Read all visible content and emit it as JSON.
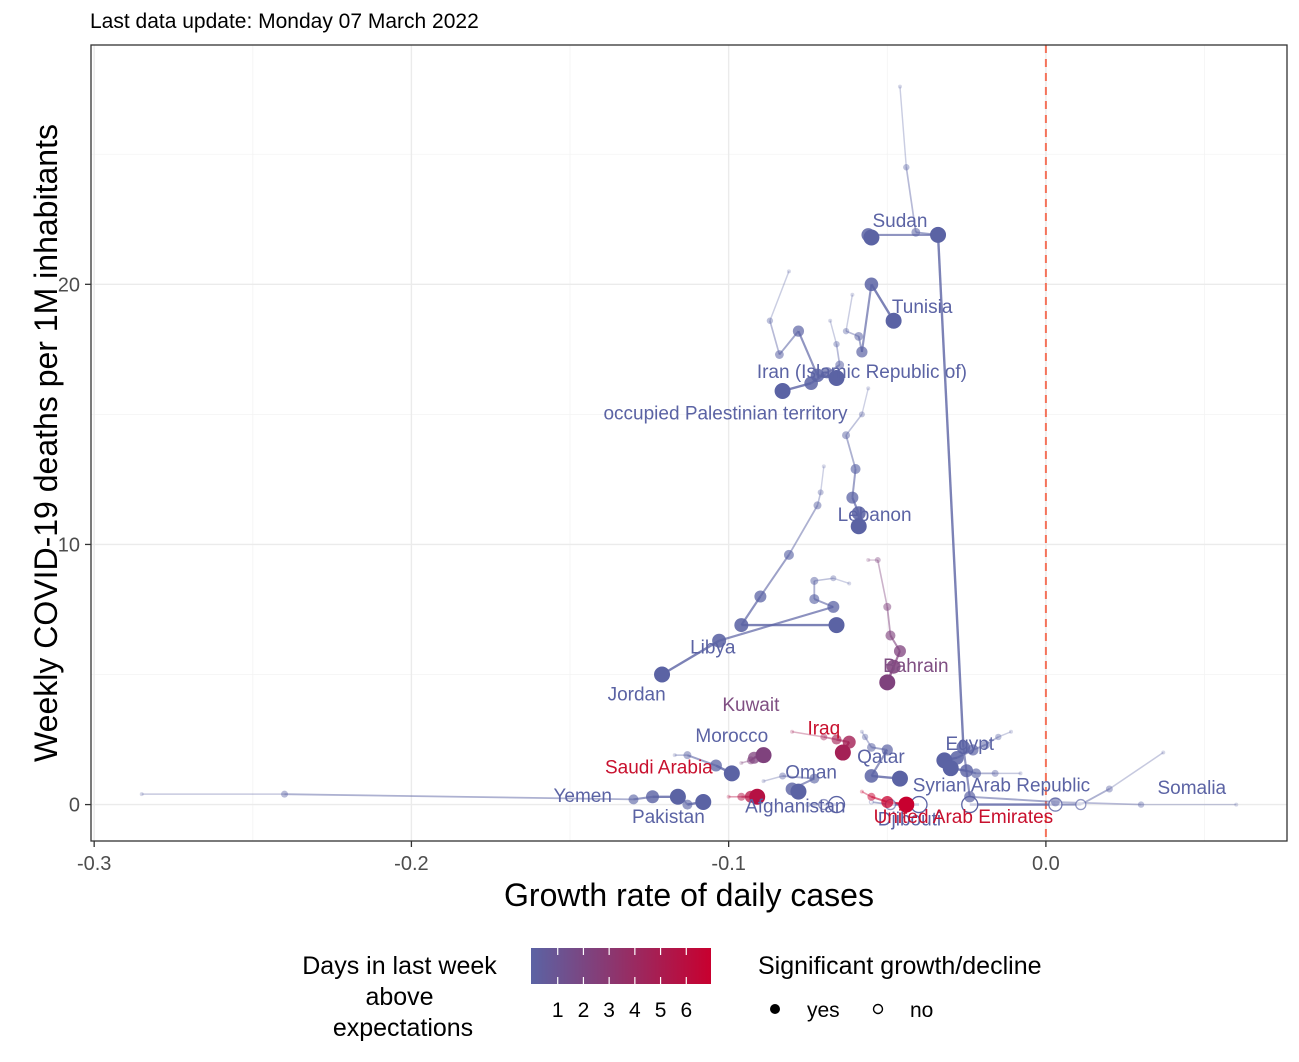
{
  "subtitle": "Last data update: Monday 07 March 2022",
  "legend": {
    "color_title": [
      "Days in last week",
      "above",
      "expectations"
    ],
    "color_ticks": [
      "1",
      "2",
      "3",
      "4",
      "5",
      "6"
    ],
    "color_low": "#5b63a4",
    "color_high": "#c8002f",
    "shape_title": "Significant growth/decline",
    "shape_yes": "yes",
    "shape_no": "no"
  },
  "colors": {
    "reference_line": "#f4735a",
    "text_blue": "#5b63a4",
    "text_purple": "#7f4e82",
    "text_red": "#c8102e"
  },
  "chart_data": {
    "type": "scatter",
    "xlabel": "Growth rate of daily cases",
    "ylabel": "Weekly COVID-19 deaths per 1M inhabitants",
    "xlim": [
      -0.301,
      0.076
    ],
    "ylim": [
      -1.4,
      29.2
    ],
    "x_ticks": [
      -0.3,
      -0.2,
      -0.1,
      0.0
    ],
    "x_tick_labels": [
      "-0.3",
      "-0.2",
      "-0.1",
      "0.0"
    ],
    "y_ticks": [
      0,
      10,
      20
    ],
    "y_tick_labels": [
      "0",
      "10",
      "20"
    ],
    "reference_line_x": 0.0,
    "grid": true,
    "legend_position": "bottom",
    "series": [
      {
        "name": "Sudan",
        "days": 0,
        "label_color": "blue",
        "trail": [
          [
            -0.046,
            27.6
          ],
          [
            -0.044,
            24.5
          ],
          [
            -0.041,
            22.0
          ],
          [
            -0.034,
            21.9
          ],
          [
            -0.056,
            21.9
          ],
          [
            -0.055,
            21.8
          ]
        ],
        "significant": [
          true,
          true,
          true,
          true,
          true,
          true
        ]
      },
      {
        "name": "Tunisia",
        "days": 0,
        "label_color": "blue",
        "trail": [
          [
            -0.061,
            19.6
          ],
          [
            -0.063,
            18.2
          ],
          [
            -0.059,
            18.0
          ],
          [
            -0.058,
            17.4
          ],
          [
            -0.055,
            20.0
          ],
          [
            -0.048,
            18.6
          ]
        ],
        "significant": [
          true,
          true,
          true,
          true,
          true,
          true
        ]
      },
      {
        "name": "Iran (Islamic Republic of)",
        "days": 0,
        "label_color": "blue",
        "trail": [
          [
            -0.068,
            18.6
          ],
          [
            -0.066,
            17.7
          ],
          [
            -0.065,
            16.9
          ],
          [
            -0.069,
            16.6
          ],
          [
            -0.074,
            16.2
          ],
          [
            -0.083,
            15.9
          ]
        ],
        "significant": [
          true,
          true,
          true,
          true,
          true,
          true
        ]
      },
      {
        "name": "occupied Palestinian territory",
        "days": 0,
        "label_color": "blue",
        "trail": [
          [
            -0.081,
            20.5
          ],
          [
            -0.087,
            18.6
          ],
          [
            -0.084,
            17.3
          ],
          [
            -0.078,
            18.2
          ],
          [
            -0.072,
            16.5
          ],
          [
            -0.066,
            16.4
          ]
        ],
        "significant": [
          true,
          true,
          true,
          true,
          true,
          true
        ]
      },
      {
        "name": "Lebanon",
        "days": 0,
        "label_color": "blue",
        "trail": [
          [
            -0.056,
            16.0
          ],
          [
            -0.058,
            15.0
          ],
          [
            -0.063,
            14.2
          ],
          [
            -0.06,
            12.9
          ],
          [
            -0.061,
            11.8
          ],
          [
            -0.059,
            11.2
          ],
          [
            -0.059,
            10.7
          ]
        ],
        "significant": [
          true,
          true,
          true,
          true,
          true,
          true,
          true
        ]
      },
      {
        "name": "Libya",
        "days": 0,
        "label_color": "blue",
        "trail": [
          [
            -0.07,
            13.0
          ],
          [
            -0.071,
            12.0
          ],
          [
            -0.072,
            11.5
          ],
          [
            -0.081,
            9.6
          ],
          [
            -0.09,
            8.0
          ],
          [
            -0.096,
            6.9
          ],
          [
            -0.066,
            6.9
          ]
        ],
        "significant": [
          true,
          true,
          true,
          true,
          true,
          true,
          true
        ]
      },
      {
        "name": "Jordan",
        "days": 0,
        "label_color": "blue",
        "trail": [
          [
            -0.062,
            8.5
          ],
          [
            -0.067,
            8.7
          ],
          [
            -0.073,
            8.6
          ],
          [
            -0.073,
            7.9
          ],
          [
            -0.067,
            7.6
          ],
          [
            -0.103,
            6.3
          ],
          [
            -0.121,
            5.0
          ]
        ],
        "significant": [
          true,
          true,
          true,
          true,
          true,
          true,
          true
        ]
      },
      {
        "name": "Bahrain",
        "days": 2,
        "label_color": "purple",
        "trail": [
          [
            -0.056,
            9.4
          ],
          [
            -0.053,
            9.4
          ],
          [
            -0.05,
            7.6
          ],
          [
            -0.049,
            6.5
          ],
          [
            -0.046,
            5.9
          ],
          [
            -0.048,
            5.3
          ],
          [
            -0.05,
            4.7
          ]
        ],
        "significant": [
          true,
          true,
          true,
          true,
          true,
          true,
          true
        ]
      },
      {
        "name": "Kuwait",
        "days": 2,
        "label_color": "purple",
        "trail": [
          [
            -0.096,
            1.6
          ],
          [
            -0.093,
            1.7
          ],
          [
            -0.092,
            1.8
          ],
          [
            -0.089,
            1.9
          ]
        ],
        "significant": [
          true,
          true,
          true,
          true
        ]
      },
      {
        "name": "Morocco",
        "days": 0,
        "label_color": "blue",
        "trail": [
          [
            -0.117,
            1.9
          ],
          [
            -0.113,
            1.9
          ],
          [
            -0.104,
            1.5
          ],
          [
            -0.099,
            1.2
          ]
        ],
        "significant": [
          true,
          true,
          true,
          true
        ]
      },
      {
        "name": "Iraq",
        "days": 4,
        "label_color": "red",
        "trail": [
          [
            -0.08,
            2.8
          ],
          [
            -0.07,
            2.6
          ],
          [
            -0.066,
            2.5
          ],
          [
            -0.062,
            2.4
          ],
          [
            -0.064,
            2.0
          ]
        ],
        "significant": [
          true,
          true,
          true,
          true,
          true
        ]
      },
      {
        "name": "Qatar",
        "days": 0,
        "label_color": "blue",
        "trail": [
          [
            -0.058,
            2.8
          ],
          [
            -0.057,
            2.6
          ],
          [
            -0.055,
            2.2
          ],
          [
            -0.05,
            2.1
          ],
          [
            -0.055,
            1.1
          ],
          [
            -0.046,
            1.0
          ]
        ],
        "significant": [
          true,
          true,
          true,
          true,
          true,
          true
        ]
      },
      {
        "name": "Saudi Arabia",
        "days": 5,
        "label_color": "red",
        "trail": [
          [
            -0.1,
            0.3
          ],
          [
            -0.096,
            0.3
          ],
          [
            -0.093,
            0.3
          ],
          [
            -0.091,
            0.3
          ]
        ],
        "significant": [
          true,
          true,
          true,
          true
        ]
      },
      {
        "name": "Oman",
        "days": 0,
        "label_color": "blue",
        "trail": [
          [
            -0.089,
            0.9
          ],
          [
            -0.083,
            1.1
          ],
          [
            -0.073,
            1.0
          ],
          [
            -0.08,
            0.6
          ],
          [
            -0.078,
            0.5
          ]
        ],
        "significant": [
          true,
          true,
          true,
          true,
          true
        ]
      },
      {
        "name": "Yemen",
        "days": 0,
        "label_color": "blue",
        "trail": [
          [
            -0.285,
            0.4
          ],
          [
            -0.24,
            0.4
          ],
          [
            -0.13,
            0.2
          ],
          [
            -0.124,
            0.3
          ],
          [
            -0.116,
            0.3
          ]
        ],
        "significant": [
          true,
          true,
          true,
          true,
          true
        ]
      },
      {
        "name": "Pakistan",
        "days": 0,
        "label_color": "blue",
        "trail": [
          [
            -0.115,
            0.3
          ],
          [
            -0.113,
            0.0
          ],
          [
            -0.108,
            0.1
          ]
        ],
        "significant": [
          true,
          true,
          true
        ]
      },
      {
        "name": "Afghanistan",
        "days": 0,
        "label_color": "blue",
        "trail": [
          [
            -0.075,
            0.0
          ],
          [
            -0.07,
            0.0
          ],
          [
            -0.066,
            0.0
          ]
        ],
        "significant": [
          false,
          false,
          false
        ]
      },
      {
        "name": "Egypt",
        "days": 0,
        "label_color": "blue",
        "trail": [
          [
            -0.011,
            2.8
          ],
          [
            -0.015,
            2.6
          ],
          [
            -0.019,
            2.3
          ],
          [
            -0.023,
            2.1
          ],
          [
            -0.028,
            1.8
          ],
          [
            -0.032,
            1.7
          ]
        ],
        "significant": [
          true,
          true,
          true,
          true,
          true,
          true
        ]
      },
      {
        "name": "Syrian Arab Republic",
        "days": 0,
        "label_color": "blue",
        "trail": [
          [
            -0.008,
            1.2
          ],
          [
            -0.016,
            1.2
          ],
          [
            -0.022,
            1.2
          ],
          [
            -0.025,
            1.3
          ],
          [
            -0.03,
            1.4
          ]
        ],
        "significant": [
          true,
          true,
          true,
          true,
          true
        ]
      },
      {
        "name": "Djibouti",
        "days": 0,
        "label_color": "blue",
        "trail": [
          [
            -0.055,
            0.1
          ],
          [
            -0.049,
            0.0
          ],
          [
            -0.04,
            0.0
          ]
        ],
        "significant": [
          false,
          false,
          false
        ]
      },
      {
        "name": "United Arab Emirates",
        "days": 6,
        "label_color": "red",
        "trail": [
          [
            -0.058,
            0.5
          ],
          [
            -0.055,
            0.3
          ],
          [
            -0.05,
            0.1
          ],
          [
            -0.044,
            0.0
          ]
        ],
        "significant": [
          true,
          true,
          true,
          true
        ]
      },
      {
        "name": "Somalia",
        "days": 0,
        "label_color": "blue",
        "trail": [
          [
            0.037,
            2.0
          ],
          [
            0.02,
            0.6
          ],
          [
            0.011,
            0.0
          ],
          [
            0.003,
            0.0
          ],
          [
            -0.024,
            0.0
          ]
        ],
        "significant": [
          true,
          true,
          false,
          false,
          false
        ]
      },
      {
        "name": "",
        "days": 0,
        "label_color": "blue",
        "trail": [
          [
            0.06,
            0.0
          ],
          [
            0.03,
            0.0
          ],
          [
            0.003,
            0.1
          ],
          [
            -0.024,
            0.3
          ],
          [
            -0.026,
            2.2
          ],
          [
            -0.034,
            21.9
          ]
        ],
        "significant": [
          true,
          true,
          true,
          true,
          true,
          true
        ]
      }
    ],
    "labels": [
      {
        "text": "Sudan",
        "x": -0.046,
        "y": 22.2,
        "color": "blue",
        "anchor": "middle"
      },
      {
        "text": "Tunisia",
        "x": -0.039,
        "y": 18.9,
        "color": "blue",
        "anchor": "middle"
      },
      {
        "text": "Iran (Islamic Republic of)",
        "x": -0.058,
        "y": 16.4,
        "color": "blue",
        "anchor": "middle"
      },
      {
        "text": "occupied Palestinian territory",
        "x": -0.101,
        "y": 14.8,
        "color": "blue",
        "anchor": "middle"
      },
      {
        "text": "Lebanon",
        "x": -0.054,
        "y": 10.9,
        "color": "blue",
        "anchor": "middle"
      },
      {
        "text": "Libya",
        "x": -0.105,
        "y": 5.8,
        "color": "blue",
        "anchor": "middle"
      },
      {
        "text": "Jordan",
        "x": -0.129,
        "y": 4.0,
        "color": "blue",
        "anchor": "middle"
      },
      {
        "text": "Bahrain",
        "x": -0.041,
        "y": 5.1,
        "color": "purple",
        "anchor": "middle"
      },
      {
        "text": "Kuwait",
        "x": -0.093,
        "y": 3.6,
        "color": "purple",
        "anchor": "middle"
      },
      {
        "text": "Morocco",
        "x": -0.099,
        "y": 2.4,
        "color": "blue",
        "anchor": "middle"
      },
      {
        "text": "Iraq",
        "x": -0.07,
        "y": 2.7,
        "color": "red",
        "anchor": "middle"
      },
      {
        "text": "Qatar",
        "x": -0.052,
        "y": 1.6,
        "color": "blue",
        "anchor": "middle"
      },
      {
        "text": "Saudi Arabia",
        "x": -0.122,
        "y": 1.2,
        "color": "red",
        "anchor": "middle"
      },
      {
        "text": "Oman",
        "x": -0.074,
        "y": 1.0,
        "color": "blue",
        "anchor": "middle"
      },
      {
        "text": "Yemen",
        "x": -0.146,
        "y": 0.1,
        "color": "blue",
        "anchor": "middle"
      },
      {
        "text": "Pakistan",
        "x": -0.119,
        "y": -0.7,
        "color": "blue",
        "anchor": "middle"
      },
      {
        "text": "Afghanistan",
        "x": -0.079,
        "y": -0.3,
        "color": "blue",
        "anchor": "middle"
      },
      {
        "text": "Egypt",
        "x": -0.024,
        "y": 2.1,
        "color": "blue",
        "anchor": "middle"
      },
      {
        "text": "Syrian Arab Republic",
        "x": -0.014,
        "y": 0.5,
        "color": "blue",
        "anchor": "middle"
      },
      {
        "text": "Djibouti",
        "x": -0.043,
        "y": -0.8,
        "color": "blue",
        "anchor": "middle"
      },
      {
        "text": "United Arab Emirates",
        "x": -0.026,
        "y": -0.7,
        "color": "red",
        "anchor": "middle"
      },
      {
        "text": "Somalia",
        "x": 0.046,
        "y": 0.4,
        "color": "blue",
        "anchor": "middle"
      }
    ]
  }
}
